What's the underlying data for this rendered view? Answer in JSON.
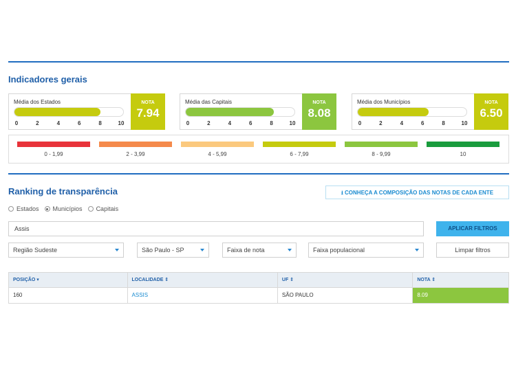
{
  "indicators": {
    "title": "Indicadores gerais",
    "nota_label": "NOTA",
    "ticks": [
      "0",
      "2",
      "4",
      "6",
      "8",
      "10"
    ],
    "cards": [
      {
        "label": "Média dos Estados",
        "value": "7.94",
        "fill_fraction": 0.794,
        "bar_color": "#c5cb0e",
        "box_color": "#c5cb0e"
      },
      {
        "label": "Média das Capitais",
        "value": "8.08",
        "fill_fraction": 0.808,
        "bar_color": "#8cc63f",
        "box_color": "#8cc63f"
      },
      {
        "label": "Média dos Municípios",
        "value": "6.50",
        "fill_fraction": 0.65,
        "bar_color": "#c5cb0e",
        "box_color": "#c5cb0e"
      }
    ],
    "legend": [
      {
        "label": "0 - 1,99",
        "color": "#e8333a"
      },
      {
        "label": "2 - 3,99",
        "color": "#f58a4b"
      },
      {
        "label": "4 - 5,99",
        "color": "#fbc97e"
      },
      {
        "label": "6 - 7,99",
        "color": "#c5cb0e"
      },
      {
        "label": "8 - 9,99",
        "color": "#8cc63f"
      },
      {
        "label": "10",
        "color": "#199c3d"
      }
    ]
  },
  "ranking": {
    "title": "Ranking de transparência",
    "composition_link": "CONHEÇA A COMPOSIÇÃO DAS NOTAS DE CADA ENTE",
    "radios": [
      {
        "label": "Estados",
        "selected": false
      },
      {
        "label": "Municípios",
        "selected": true
      },
      {
        "label": "Capitais",
        "selected": false
      }
    ],
    "search_value": "Assis",
    "apply_button": "APLICAR FILTROS",
    "clear_button": "Limpar filtros",
    "filters": [
      "Região Sudeste",
      "São Paulo - SP",
      "Faixa de nota",
      "Faixa populacional"
    ],
    "table": {
      "headers": [
        "POSIÇÃO",
        "LOCALIDADE",
        "UF",
        "NOTA"
      ],
      "rows": [
        [
          "160",
          "ASSIS",
          "SÃO PAULO",
          "8.09"
        ]
      ]
    }
  }
}
